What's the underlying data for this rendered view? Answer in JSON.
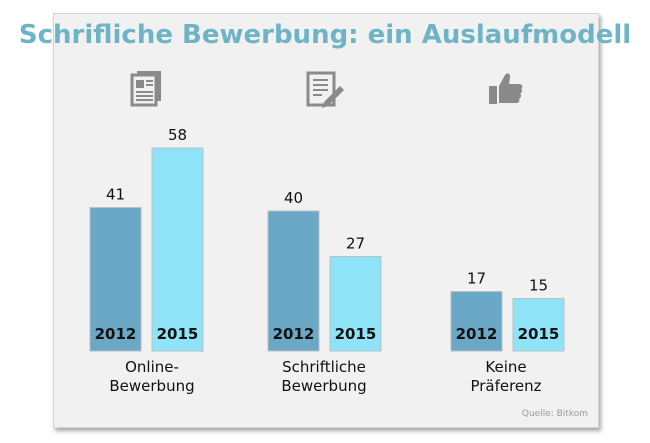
{
  "title": "Schrifliche Bewerbung: ein Auslaufmodell",
  "source": "Quelle: Bitkom",
  "colors": {
    "y2012": "#6aa8c5",
    "y2015": "#8ee3f7",
    "title": "#6fb4c6",
    "icon": "#8a8a8a"
  },
  "icons": [
    "document-icon",
    "letter-pen-icon",
    "thumbs-up-icon"
  ],
  "chart_data": {
    "type": "bar",
    "title": "Schrifliche Bewerbung: ein Auslaufmodell",
    "categories": [
      "Online-Bewerbung",
      "Schriftliche Bewerbung",
      "Keine Präferenz"
    ],
    "category_lines": [
      [
        "Online-",
        "Bewerbung"
      ],
      [
        "Schriftliche",
        "Bewerbung"
      ],
      [
        "Keine",
        "Präferenz"
      ]
    ],
    "series": [
      {
        "name": "2012",
        "values": [
          41,
          40,
          17
        ]
      },
      {
        "name": "2015",
        "values": [
          58,
          27,
          15
        ]
      }
    ],
    "xlabel": "",
    "ylabel": "",
    "ylim": [
      0,
      60
    ],
    "grid": false,
    "legend": "none"
  }
}
